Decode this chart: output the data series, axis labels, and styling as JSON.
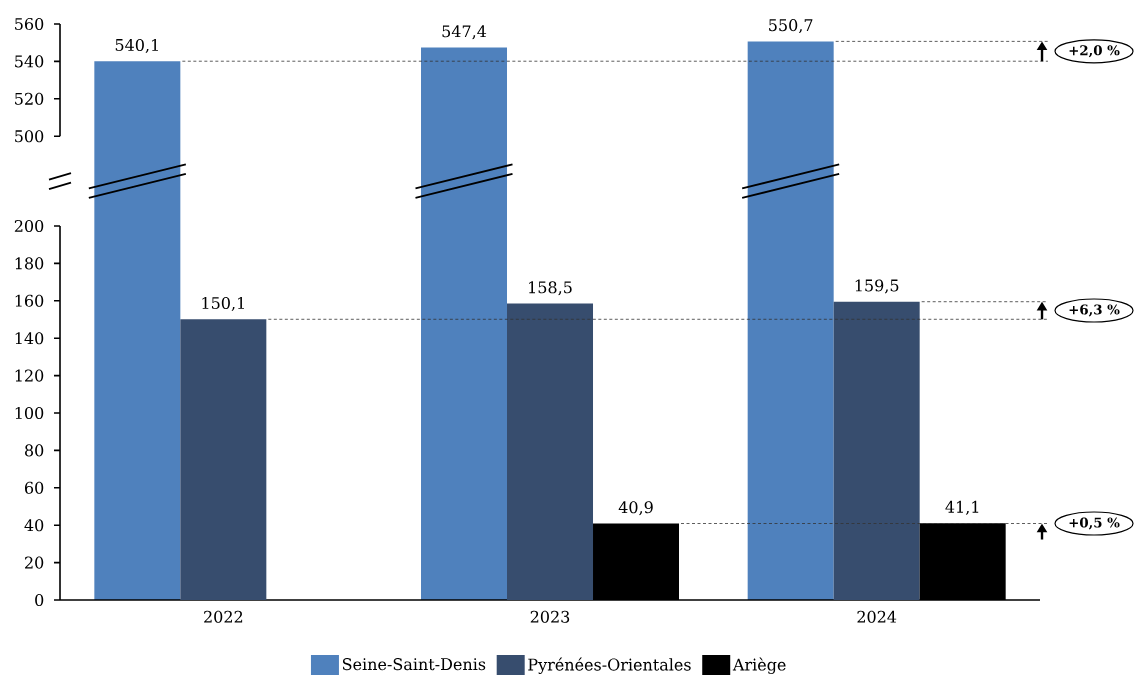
{
  "chart_data": [
    {
      "type": "bar",
      "categories": [
        "2022",
        "2023",
        "2024"
      ],
      "tick_labels": "y",
      "series": [
        {
          "color": "#4f81bd",
          "values": [
            540.1,
            547.4,
            550.7
          ],
          "value_labels": [
            "540,1",
            "547,4",
            "550,7"
          ]
        }
      ],
      "ylim": [
        500,
        560
      ],
      "yticks": [
        500,
        520,
        540,
        560
      ],
      "ref_lines": [
        {
          "axis": "y",
          "value": 540.1,
          "color": "#333333",
          "line_style": "dashed"
        },
        {
          "axis": "y",
          "value": 550.7,
          "color": "#333333",
          "line_style": "dashed"
        }
      ],
      "annotations": [
        "+2,0 %"
      ]
    },
    {
      "type": "bar",
      "categories": [
        "2022",
        "2023",
        "2024"
      ],
      "series": [
        {
          "name": "Seine-Saint-Denis",
          "color": "#4f81bd",
          "values": [
            null,
            null,
            null
          ]
        },
        {
          "name": "Pyrénées-Orientales",
          "color": "#374d6e",
          "values": [
            150.1,
            158.5,
            159.5
          ],
          "value_labels": [
            "150,1",
            "158,5",
            "159,5"
          ]
        },
        {
          "name": "Ariège",
          "color": "#000000",
          "values": [
            null,
            40.9,
            41.1
          ],
          "value_labels": [
            null,
            "40,9",
            "41,1"
          ]
        }
      ],
      "ylim": [
        0,
        200
      ],
      "yticks": [
        0,
        20,
        40,
        60,
        80,
        100,
        120,
        140,
        160,
        180,
        200
      ],
      "ref_lines": [
        {
          "axis": "y",
          "value": 150.1,
          "color": "#333333",
          "line_style": "dashed"
        },
        {
          "axis": "y",
          "value": 159.5,
          "color": "#333333",
          "line_style": "dashed"
        },
        {
          "axis": "y",
          "value": 40.9,
          "color": "#333333",
          "line_style": "dashed"
        }
      ],
      "annotations": [
        "+6,3 %",
        "+0,5 %"
      ],
      "legend": "bottom"
    }
  ]
}
